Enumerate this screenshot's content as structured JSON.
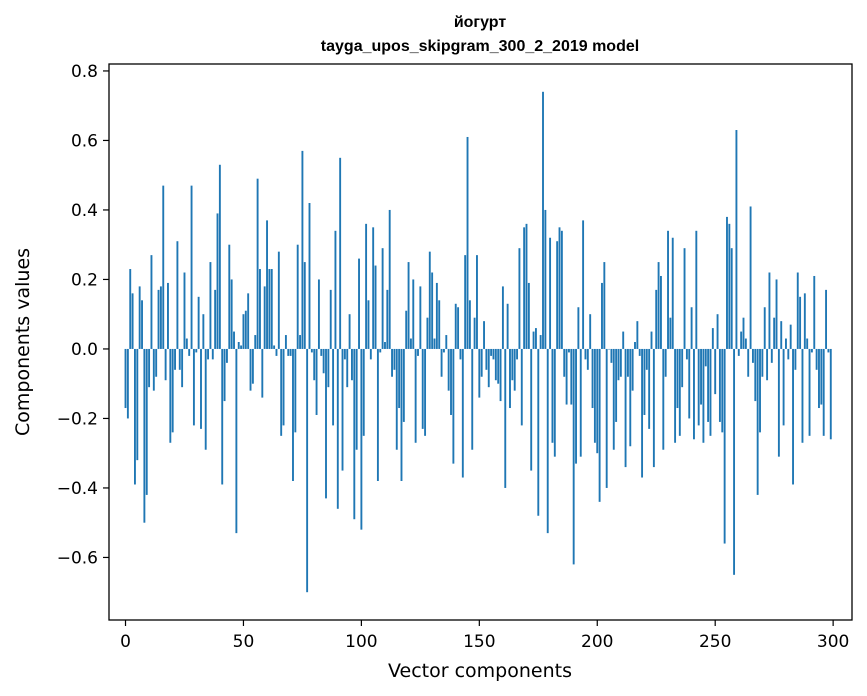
{
  "chart_data": {
    "type": "bar",
    "title": "йогурт",
    "subtitle": "tayga_upos_skipgram_300_2_2019 model",
    "xlabel": "Vector components",
    "ylabel": "Components values",
    "xlim": [
      -7,
      308
    ],
    "ylim": [
      -0.78,
      0.82
    ],
    "xticks": [
      0,
      50,
      100,
      150,
      200,
      250,
      300
    ],
    "yticks": [
      -0.6,
      -0.4,
      -0.2,
      0.0,
      0.2,
      0.4,
      0.6,
      0.8
    ],
    "xtick_labels": [
      "0",
      "50",
      "100",
      "150",
      "200",
      "250",
      "300"
    ],
    "ytick_labels": [
      "−0.6",
      "−0.4",
      "−0.2",
      "0.0",
      "0.2",
      "0.4",
      "0.6",
      "0.8"
    ],
    "grid": false,
    "bar_color": "#1f77b4",
    "x": "0..299 (component index)",
    "values": [
      -0.17,
      -0.2,
      0.23,
      0.16,
      -0.39,
      -0.32,
      0.18,
      0.14,
      -0.5,
      -0.42,
      -0.11,
      0.27,
      -0.12,
      -0.08,
      0.17,
      0.18,
      0.47,
      -0.09,
      0.19,
      -0.27,
      -0.24,
      -0.06,
      0.31,
      -0.06,
      -0.11,
      0.22,
      0.03,
      -0.02,
      0.47,
      -0.22,
      -0.01,
      0.15,
      -0.23,
      0.1,
      -0.29,
      -0.03,
      0.25,
      -0.03,
      0.17,
      0.39,
      0.53,
      -0.39,
      -0.15,
      -0.04,
      0.3,
      0.2,
      0.05,
      -0.53,
      0.02,
      0.01,
      0.1,
      0.11,
      0.16,
      -0.12,
      -0.1,
      0.04,
      0.49,
      0.23,
      -0.14,
      0.18,
      0.37,
      0.23,
      0.23,
      0.01,
      -0.02,
      0.28,
      -0.25,
      -0.22,
      0.04,
      -0.02,
      -0.02,
      -0.38,
      -0.24,
      0.3,
      0.04,
      0.57,
      0.25,
      -0.7,
      0.42,
      -0.01,
      -0.09,
      -0.19,
      0.2,
      -0.02,
      -0.07,
      -0.43,
      -0.11,
      0.17,
      -0.22,
      0.34,
      -0.46,
      0.55,
      -0.35,
      -0.03,
      -0.11,
      0.1,
      -0.09,
      -0.49,
      -0.29,
      0.26,
      -0.52,
      -0.25,
      0.36,
      0.14,
      -0.03,
      0.35,
      0.24,
      -0.38,
      -0.01,
      0.29,
      0.02,
      0.17,
      0.4,
      -0.08,
      -0.06,
      -0.29,
      -0.17,
      -0.38,
      -0.21,
      0.11,
      0.25,
      0.03,
      0.2,
      -0.27,
      -0.02,
      0.18,
      -0.23,
      -0.25,
      0.09,
      0.28,
      0.22,
      0.03,
      0.19,
      0.14,
      -0.08,
      -0.01,
      0.04,
      -0.12,
      -0.19,
      -0.33,
      0.13,
      0.12,
      -0.03,
      -0.37,
      0.27,
      0.61,
      0.14,
      -0.29,
      0.09,
      0.27,
      -0.14,
      -0.08,
      0.08,
      -0.06,
      -0.11,
      -0.02,
      -0.03,
      -0.09,
      -0.1,
      -0.15,
      0.18,
      -0.4,
      0.13,
      -0.17,
      -0.09,
      -0.12,
      -0.03,
      0.29,
      -0.22,
      0.35,
      0.36,
      0.19,
      -0.35,
      0.05,
      0.06,
      -0.48,
      0.04,
      0.74,
      0.4,
      -0.53,
      0.32,
      -0.27,
      -0.31,
      0.31,
      0.35,
      0.34,
      -0.08,
      -0.16,
      -0.01,
      -0.16,
      -0.62,
      -0.33,
      0.12,
      -0.31,
      0.37,
      -0.03,
      -0.06,
      0.1,
      -0.17,
      -0.27,
      -0.3,
      -0.44,
      0.19,
      0.25,
      -0.4,
      0.0,
      -0.04,
      -0.29,
      -0.21,
      -0.09,
      -0.08,
      0.05,
      -0.34,
      -0.08,
      -0.28,
      -0.12,
      0.02,
      0.08,
      -0.02,
      -0.37,
      -0.19,
      -0.06,
      -0.23,
      0.05,
      -0.34,
      0.17,
      0.25,
      0.21,
      -0.29,
      -0.08,
      0.34,
      0.09,
      0.32,
      -0.27,
      -0.17,
      -0.25,
      -0.11,
      0.29,
      -0.03,
      -0.2,
      0.12,
      -0.26,
      0.34,
      -0.22,
      -0.16,
      -0.27,
      -0.05,
      -0.21,
      -0.25,
      0.06,
      -0.13,
      0.1,
      -0.21,
      -0.24,
      -0.56,
      0.38,
      0.36,
      0.29,
      -0.65,
      0.63,
      -0.02,
      0.05,
      0.09,
      0.03,
      -0.08,
      0.41,
      -0.04,
      -0.15,
      -0.42,
      -0.24,
      -0.08,
      0.12,
      -0.09,
      0.22,
      -0.04,
      0.09,
      0.2,
      -0.31,
      0.08,
      -0.22,
      0.03,
      -0.03,
      0.07,
      -0.39,
      -0.06,
      0.22,
      0.15,
      -0.27,
      0.16,
      0.03,
      -0.25,
      -0.01,
      0.21,
      -0.06,
      -0.17,
      -0.16,
      -0.25,
      0.17,
      -0.01,
      -0.26
    ]
  }
}
